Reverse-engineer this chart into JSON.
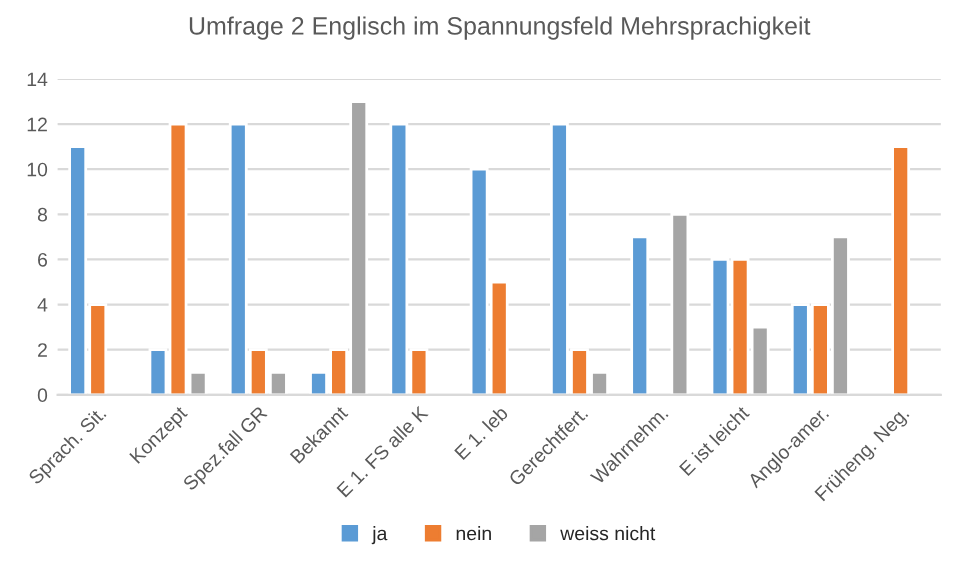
{
  "chart_data": {
    "type": "bar",
    "title": "Umfrage 2 Englisch im Spannungsfeld Mehrsprachigkeit",
    "categories": [
      "Sprach. Sit.",
      "Konzept",
      "Spez.fall GR",
      "Bekannt",
      "E 1. FS alle K",
      "E 1. leb",
      "Gerechtfert.",
      "Wahrnehm.",
      "E ist leicht",
      "Anglo-amer.",
      "Früheng. Neg."
    ],
    "series": [
      {
        "name": "ja",
        "color": "#5b9bd5",
        "values": [
          11,
          2,
          12,
          1,
          12,
          10,
          12,
          7,
          6,
          4,
          null
        ]
      },
      {
        "name": "nein",
        "color": "#ed7d31",
        "values": [
          4,
          12,
          2,
          2,
          2,
          5,
          2,
          null,
          6,
          4,
          11
        ]
      },
      {
        "name": "weiss nicht",
        "color": "#a5a5a5",
        "values": [
          null,
          1,
          1,
          13,
          null,
          null,
          1,
          8,
          3,
          7,
          null
        ]
      }
    ],
    "ylim": [
      0,
      14
    ],
    "yticks": [
      0,
      2,
      4,
      6,
      8,
      10,
      12,
      14
    ],
    "grid": "y",
    "legend": "bottom"
  }
}
